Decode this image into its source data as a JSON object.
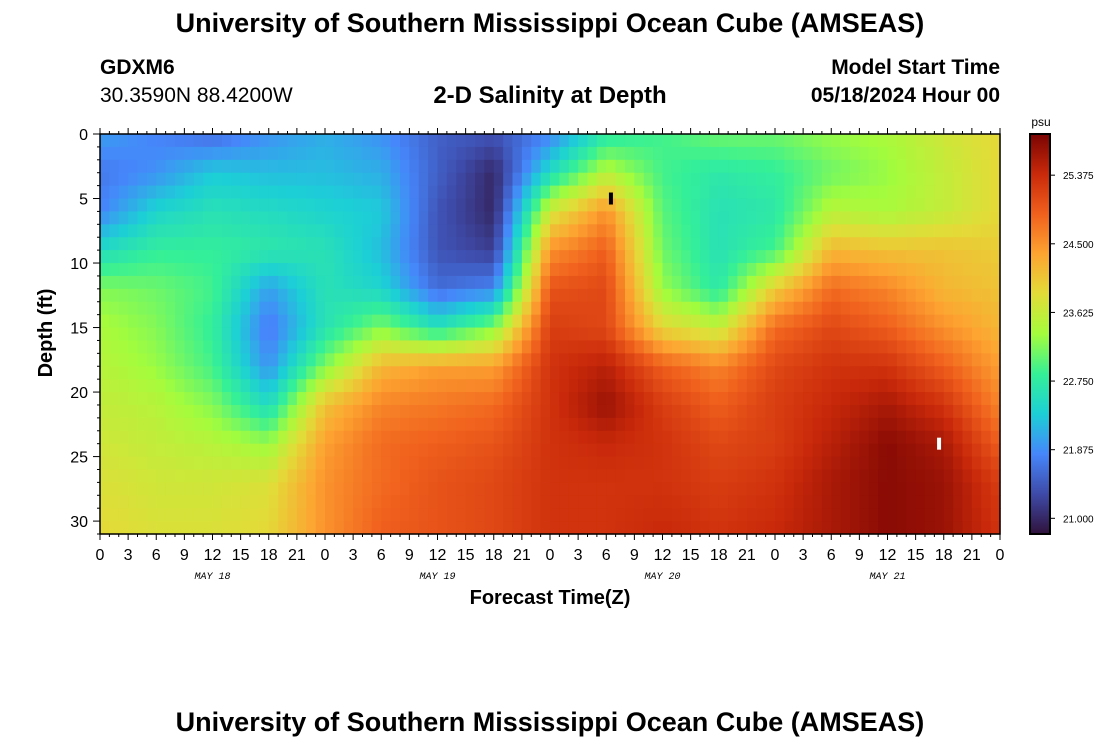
{
  "header": {
    "title": "University of Southern Mississippi Ocean Cube (AMSEAS)",
    "station": "GDXM6",
    "coords": "30.3590N  88.4200W",
    "subtitle": "2-D Salinity at Depth",
    "start_label": "Model Start Time",
    "start_value": "05/18/2024 Hour 00"
  },
  "footer": {
    "title": "University of Southern Mississippi Ocean Cube (AMSEAS)"
  },
  "chart_data": {
    "type": "heatmap",
    "title": "2-D Salinity at Depth",
    "xlabel": "Forecast Time(Z)",
    "ylabel": "Depth (ft)",
    "units": "psu",
    "xlim": [
      0,
      96
    ],
    "ylim": [
      31,
      0
    ],
    "x_tick_labels": [
      "0",
      "3",
      "6",
      "9",
      "12",
      "15",
      "18",
      "21",
      "0",
      "3",
      "6",
      "9",
      "12",
      "15",
      "18",
      "21",
      "0",
      "3",
      "6",
      "9",
      "12",
      "15",
      "18",
      "21",
      "0",
      "3",
      "6",
      "9",
      "12",
      "15",
      "18",
      "21",
      "0"
    ],
    "day_labels": [
      {
        "label": "MAY 18",
        "hour": 12
      },
      {
        "label": "MAY 19",
        "hour": 36
      },
      {
        "label": "MAY 20",
        "hour": 60
      },
      {
        "label": "MAY 21",
        "hour": 84
      }
    ],
    "y_ticks": [
      0,
      5,
      10,
      15,
      20,
      25,
      30
    ],
    "colorbar": {
      "label": "psu",
      "ticks": [
        "25.375",
        "24.500",
        "23.625",
        "22.750",
        "21.875",
        "21.000"
      ],
      "tick_values": [
        25.375,
        24.5,
        23.625,
        22.75,
        21.875,
        21.0
      ],
      "range": [
        20.8,
        25.9
      ],
      "colors": [
        "#30123b",
        "#3e4aa8",
        "#4686fb",
        "#1ccfd6",
        "#35f097",
        "#a4fc3c",
        "#e2dc38",
        "#fda431",
        "#f0601d",
        "#c9290a",
        "#7a0403"
      ]
    },
    "x_hours": [
      0,
      6,
      12,
      18,
      24,
      30,
      36,
      42,
      48,
      54,
      60,
      66,
      72,
      78,
      84,
      90,
      96
    ],
    "depths_ft": [
      0,
      3,
      6,
      9,
      12,
      15,
      18,
      21,
      24,
      27,
      31
    ],
    "salinity_psu": [
      [
        22.0,
        21.8,
        21.6,
        21.9,
        22.1,
        21.9,
        21.5,
        21.4,
        21.8,
        22.7,
        22.9,
        23.1,
        23.1,
        23.3,
        23.4,
        23.7,
        23.9
      ],
      [
        21.7,
        21.9,
        22.3,
        22.2,
        22.2,
        22.1,
        21.5,
        21.0,
        22.5,
        23.5,
        22.9,
        22.7,
        22.8,
        23.1,
        23.3,
        23.6,
        23.9
      ],
      [
        21.8,
        22.4,
        22.6,
        22.5,
        22.4,
        22.3,
        21.4,
        21.0,
        23.7,
        24.5,
        23.0,
        22.6,
        22.7,
        23.5,
        23.4,
        23.6,
        23.9
      ],
      [
        22.5,
        22.8,
        22.8,
        22.7,
        22.6,
        22.2,
        21.4,
        21.2,
        24.5,
        24.9,
        23.1,
        22.6,
        22.9,
        24.2,
        24.1,
        24.1,
        24.0
      ],
      [
        23.2,
        23.1,
        22.9,
        22.0,
        22.6,
        22.4,
        21.6,
        21.8,
        25.0,
        25.1,
        23.3,
        22.7,
        24.0,
        24.8,
        24.6,
        24.2,
        24.1
      ],
      [
        23.4,
        23.2,
        22.8,
        21.7,
        22.6,
        23.2,
        22.6,
        23.2,
        25.2,
        25.1,
        23.9,
        23.6,
        24.8,
        25.1,
        24.9,
        24.5,
        24.2
      ],
      [
        23.5,
        23.3,
        22.9,
        21.9,
        23.2,
        24.2,
        24.4,
        24.4,
        25.3,
        25.5,
        24.9,
        24.6,
        25.1,
        25.3,
        25.3,
        24.9,
        24.4
      ],
      [
        23.6,
        23.5,
        23.2,
        22.5,
        24.1,
        24.6,
        24.7,
        24.8,
        25.3,
        25.7,
        25.2,
        24.9,
        25.2,
        25.4,
        25.6,
        25.3,
        24.6
      ],
      [
        23.7,
        23.6,
        23.5,
        23.3,
        24.4,
        24.8,
        24.9,
        25.0,
        25.3,
        25.4,
        25.3,
        25.1,
        25.2,
        25.5,
        25.8,
        25.6,
        24.9
      ],
      [
        23.8,
        23.7,
        23.7,
        23.8,
        24.5,
        24.8,
        25.0,
        25.1,
        25.3,
        25.3,
        25.3,
        25.2,
        25.3,
        25.6,
        25.8,
        25.7,
        25.2
      ],
      [
        23.9,
        23.8,
        23.8,
        23.9,
        24.5,
        24.9,
        25.0,
        25.1,
        25.3,
        25.3,
        25.4,
        25.3,
        25.4,
        25.6,
        25.8,
        25.7,
        25.3
      ]
    ],
    "markers": [
      {
        "hour": 54.5,
        "depth": 5,
        "color": "#000000"
      },
      {
        "hour": 89.5,
        "depth": 24,
        "color": "#ffffff"
      }
    ]
  }
}
